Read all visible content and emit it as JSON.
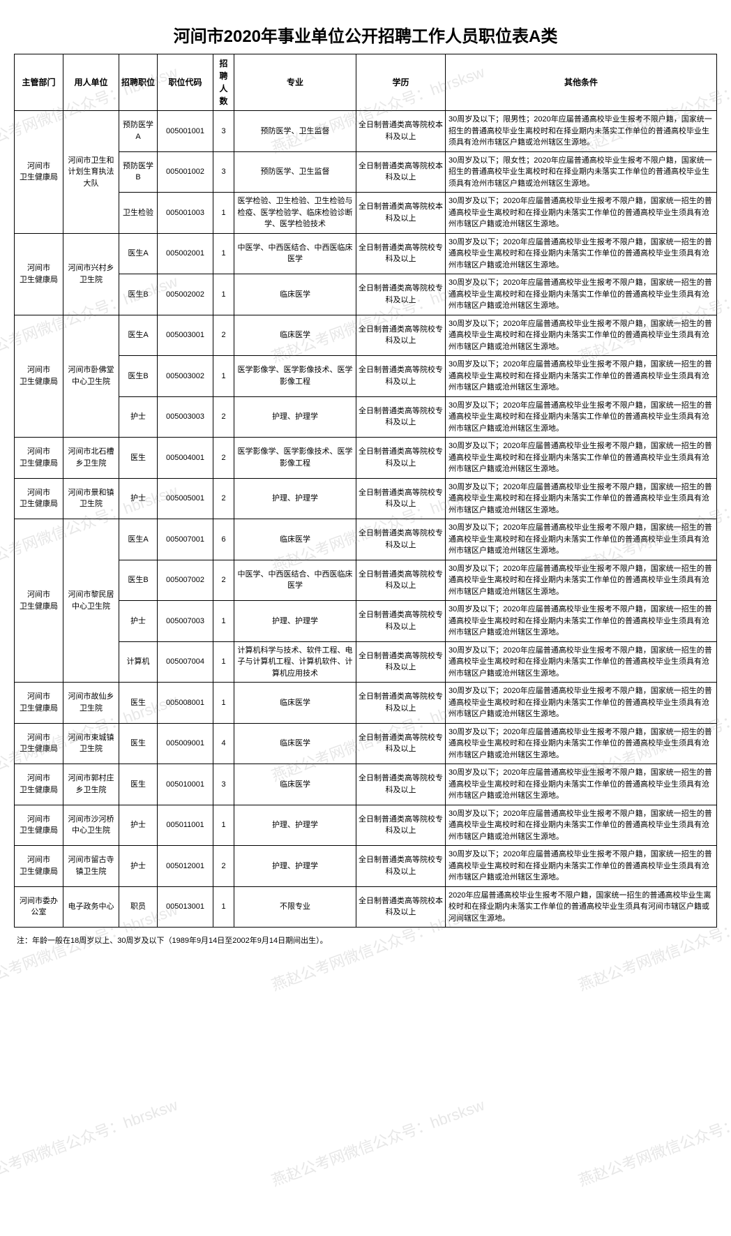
{
  "title": "河间市2020年事业单位公开招聘工作人员职位表A类",
  "headers": {
    "dept": "主管部门",
    "unit": "用人单位",
    "position": "招聘职位",
    "code": "职位代码",
    "count": "招聘人数",
    "major": "专业",
    "education": "学历",
    "other": "其他条件"
  },
  "footnote": "注：年龄一般在18周岁以上、30周岁及以下（1989年9月14日至2002年9月14日期间出生）。",
  "watermark_text": "燕赵公考网微信公众号：hbrsksw",
  "groups": [
    {
      "dept": "河间市　　卫生健康局",
      "unit": "河间市卫生和计划生育执法大队",
      "rows": [
        {
          "position": "预防医学A",
          "code": "005001001",
          "count": "3",
          "major": "预防医学、卫生监督",
          "education": "全日制普通类高等院校本科及以上",
          "other": "30周岁及以下；限男性；2020年应届普通高校毕业生报考不限户籍，国家统一招生的普通高校毕业生离校时和在择业期内未落实工作单位的普通高校毕业生须具有沧州市辖区户籍或沧州辖区生源地。"
        },
        {
          "position": "预防医学B",
          "code": "005001002",
          "count": "3",
          "major": "预防医学、卫生监督",
          "education": "全日制普通类高等院校本科及以上",
          "other": "30周岁及以下；限女性；2020年应届普通高校毕业生报考不限户籍，国家统一招生的普通高校毕业生离校时和在择业期内未落实工作单位的普通高校毕业生须具有沧州市辖区户籍或沧州辖区生源地。"
        },
        {
          "position": "卫生检验",
          "code": "005001003",
          "count": "1",
          "major": "医学检验、卫生检验、卫生检验与检疫、医学检验学、临床检验诊断学、医学检验技术",
          "education": "全日制普通类高等院校本科及以上",
          "other": "30周岁及以下；2020年应届普通高校毕业生报考不限户籍，国家统一招生的普通高校毕业生离校时和在择业期内未落实工作单位的普通高校毕业生须具有沧州市辖区户籍或沧州辖区生源地。"
        }
      ]
    },
    {
      "dept": "河间市　　卫生健康局",
      "unit": "河间市兴村乡卫生院",
      "rows": [
        {
          "position": "医生A",
          "code": "005002001",
          "count": "1",
          "major": "中医学、中西医结合、中西医临床医学",
          "education": "全日制普通类高等院校专科及以上",
          "other": "30周岁及以下；2020年应届普通高校毕业生报考不限户籍，国家统一招生的普通高校毕业生离校时和在择业期内未落实工作单位的普通高校毕业生须具有沧州市辖区户籍或沧州辖区生源地。"
        },
        {
          "position": "医生B",
          "code": "005002002",
          "count": "1",
          "major": "临床医学",
          "education": "全日制普通类高等院校专科及以上",
          "other": "30周岁及以下；2020年应届普通高校毕业生报考不限户籍，国家统一招生的普通高校毕业生离校时和在择业期内未落实工作单位的普通高校毕业生须具有沧州市辖区户籍或沧州辖区生源地。"
        }
      ]
    },
    {
      "dept": "河间市　　卫生健康局",
      "unit": "河间市卧佛堂中心卫生院",
      "rows": [
        {
          "position": "医生A",
          "code": "005003001",
          "count": "2",
          "major": "临床医学",
          "education": "全日制普通类高等院校专科及以上",
          "other": "30周岁及以下；2020年应届普通高校毕业生报考不限户籍，国家统一招生的普通高校毕业生离校时和在择业期内未落实工作单位的普通高校毕业生须具有沧州市辖区户籍或沧州辖区生源地。"
        },
        {
          "position": "医生B",
          "code": "005003002",
          "count": "1",
          "major": "医学影像学、医学影像技术、医学影像工程",
          "education": "全日制普通类高等院校专科及以上",
          "other": "30周岁及以下；2020年应届普通高校毕业生报考不限户籍，国家统一招生的普通高校毕业生离校时和在择业期内未落实工作单位的普通高校毕业生须具有沧州市辖区户籍或沧州辖区生源地。"
        },
        {
          "position": "护士",
          "code": "005003003",
          "count": "2",
          "major": "护理、护理学",
          "education": "全日制普通类高等院校专科及以上",
          "other": "30周岁及以下；2020年应届普通高校毕业生报考不限户籍，国家统一招生的普通高校毕业生离校时和在择业期内未落实工作单位的普通高校毕业生须具有沧州市辖区户籍或沧州辖区生源地。"
        }
      ]
    },
    {
      "dept": "河间市　　卫生健康局",
      "unit": "河间市北石槽乡卫生院",
      "rows": [
        {
          "position": "医生",
          "code": "005004001",
          "count": "2",
          "major": "医学影像学、医学影像技术、医学影像工程",
          "education": "全日制普通类高等院校专科及以上",
          "other": "30周岁及以下；2020年应届普通高校毕业生报考不限户籍，国家统一招生的普通高校毕业生离校时和在择业期内未落实工作单位的普通高校毕业生须具有沧州市辖区户籍或沧州辖区生源地。"
        }
      ]
    },
    {
      "dept": "河间市　　卫生健康局",
      "unit": "河间市景和镇卫生院",
      "rows": [
        {
          "position": "护士",
          "code": "005005001",
          "count": "2",
          "major": "护理、护理学",
          "education": "全日制普通类高等院校专科及以上",
          "other": "30周岁及以下；2020年应届普通高校毕业生报考不限户籍，国家统一招生的普通高校毕业生离校时和在择业期内未落实工作单位的普通高校毕业生须具有沧州市辖区户籍或沧州辖区生源地。"
        }
      ]
    },
    {
      "dept": "河间市　　卫生健康局",
      "unit": "河间市黎民居中心卫生院",
      "rows": [
        {
          "position": "医生A",
          "code": "005007001",
          "count": "6",
          "major": "临床医学",
          "education": "全日制普通类高等院校专科及以上",
          "other": "30周岁及以下；2020年应届普通高校毕业生报考不限户籍，国家统一招生的普通高校毕业生离校时和在择业期内未落实工作单位的普通高校毕业生须具有沧州市辖区户籍或沧州辖区生源地。"
        },
        {
          "position": "医生B",
          "code": "005007002",
          "count": "2",
          "major": "中医学、中西医结合、中西医临床医学",
          "education": "全日制普通类高等院校专科及以上",
          "other": "30周岁及以下；2020年应届普通高校毕业生报考不限户籍，国家统一招生的普通高校毕业生离校时和在择业期内未落实工作单位的普通高校毕业生须具有沧州市辖区户籍或沧州辖区生源地。"
        },
        {
          "position": "护士",
          "code": "005007003",
          "count": "1",
          "major": "护理、护理学",
          "education": "全日制普通类高等院校专科及以上",
          "other": "30周岁及以下；2020年应届普通高校毕业生报考不限户籍，国家统一招生的普通高校毕业生离校时和在择业期内未落实工作单位的普通高校毕业生须具有沧州市辖区户籍或沧州辖区生源地。"
        },
        {
          "position": "计算机",
          "code": "005007004",
          "count": "1",
          "major": "计算机科学与技术、软件工程、电子与计算机工程、计算机软件、计算机应用技术",
          "education": "全日制普通类高等院校专科及以上",
          "other": "30周岁及以下；2020年应届普通高校毕业生报考不限户籍，国家统一招生的普通高校毕业生离校时和在择业期内未落实工作单位的普通高校毕业生须具有沧州市辖区户籍或沧州辖区生源地。"
        }
      ]
    },
    {
      "dept": "河间市　　卫生健康局",
      "unit": "河间市故仙乡卫生院",
      "rows": [
        {
          "position": "医生",
          "code": "005008001",
          "count": "1",
          "major": "临床医学",
          "education": "全日制普通类高等院校专科及以上",
          "other": "30周岁及以下；2020年应届普通高校毕业生报考不限户籍，国家统一招生的普通高校毕业生离校时和在择业期内未落实工作单位的普通高校毕业生须具有沧州市辖区户籍或沧州辖区生源地。"
        }
      ]
    },
    {
      "dept": "河间市　　卫生健康局",
      "unit": "河间市束城镇卫生院",
      "rows": [
        {
          "position": "医生",
          "code": "005009001",
          "count": "4",
          "major": "临床医学",
          "education": "全日制普通类高等院校专科及以上",
          "other": "30周岁及以下；2020年应届普通高校毕业生报考不限户籍，国家统一招生的普通高校毕业生离校时和在择业期内未落实工作单位的普通高校毕业生须具有沧州市辖区户籍或沧州辖区生源地。"
        }
      ]
    },
    {
      "dept": "河间市　　卫生健康局",
      "unit": "河间市郭村庄乡卫生院",
      "rows": [
        {
          "position": "医生",
          "code": "005010001",
          "count": "3",
          "major": "临床医学",
          "education": "全日制普通类高等院校专科及以上",
          "other": "30周岁及以下；2020年应届普通高校毕业生报考不限户籍，国家统一招生的普通高校毕业生离校时和在择业期内未落实工作单位的普通高校毕业生须具有沧州市辖区户籍或沧州辖区生源地。"
        }
      ]
    },
    {
      "dept": "河间市　　卫生健康局",
      "unit": "河间市沙河桥中心卫生院",
      "rows": [
        {
          "position": "护士",
          "code": "005011001",
          "count": "1",
          "major": "护理、护理学",
          "education": "全日制普通类高等院校专科及以上",
          "other": "30周岁及以下；2020年应届普通高校毕业生报考不限户籍，国家统一招生的普通高校毕业生离校时和在择业期内未落实工作单位的普通高校毕业生须具有沧州市辖区户籍或沧州辖区生源地。"
        }
      ]
    },
    {
      "dept": "河间市　　卫生健康局",
      "unit": "河间市留古寺镇卫生院",
      "rows": [
        {
          "position": "护士",
          "code": "005012001",
          "count": "2",
          "major": "护理、护理学",
          "education": "全日制普通类高等院校专科及以上",
          "other": "30周岁及以下；2020年应届普通高校毕业生报考不限户籍，国家统一招生的普通高校毕业生离校时和在择业期内未落实工作单位的普通高校毕业生须具有沧州市辖区户籍或沧州辖区生源地。"
        }
      ]
    },
    {
      "dept": "河间市委办公室",
      "unit": "电子政务中心",
      "rows": [
        {
          "position": "职员",
          "code": "005013001",
          "count": "1",
          "major": "不限专业",
          "education": "全日制普通类高等院校本科及以上",
          "other": "2020年应届普通高校毕业生报考不限户籍，国家统一招生的普通高校毕业生离校时和在择业期内未落实工作单位的普通高校毕业生须具有河间市辖区户籍或河间辖区生源地。"
        }
      ]
    }
  ]
}
